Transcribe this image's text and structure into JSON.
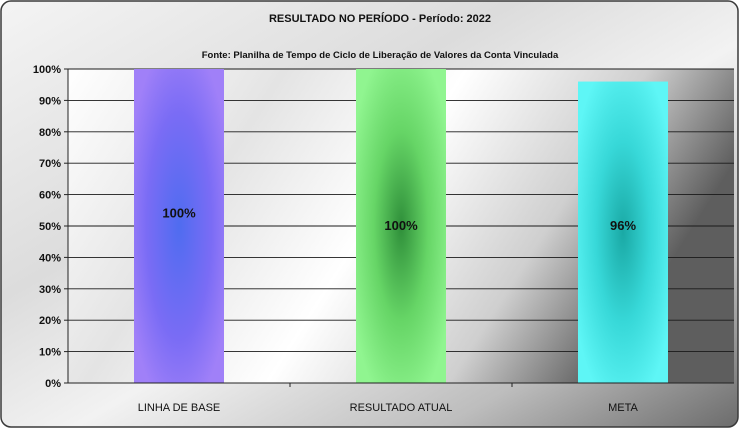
{
  "chart_data": {
    "type": "bar",
    "title": "RESULTADO NO PERÍODO - Período:  2022",
    "subtitle": "Fonte: Planilha de Tempo de Ciclo de Liberação de Valores da Conta Vinculada",
    "categories": [
      "LINHA DE  BASE",
      "RESULTADO ATUAL",
      "META"
    ],
    "values": [
      100,
      100,
      96
    ],
    "value_labels": [
      "100%",
      "100%",
      "96%"
    ],
    "ylim": [
      0,
      100
    ],
    "yticks": [
      0,
      10,
      20,
      30,
      40,
      50,
      60,
      70,
      80,
      90,
      100
    ],
    "ytick_labels": [
      "0%",
      "10%",
      "20%",
      "30%",
      "40%",
      "50%",
      "60%",
      "70%",
      "80%",
      "90%",
      "100%"
    ],
    "label_heights": [
      54,
      50,
      50
    ],
    "bar_colors": [
      "#7a6cf5",
      "#7df07a",
      "#37d8d8"
    ],
    "grid": true,
    "legend": "none"
  }
}
